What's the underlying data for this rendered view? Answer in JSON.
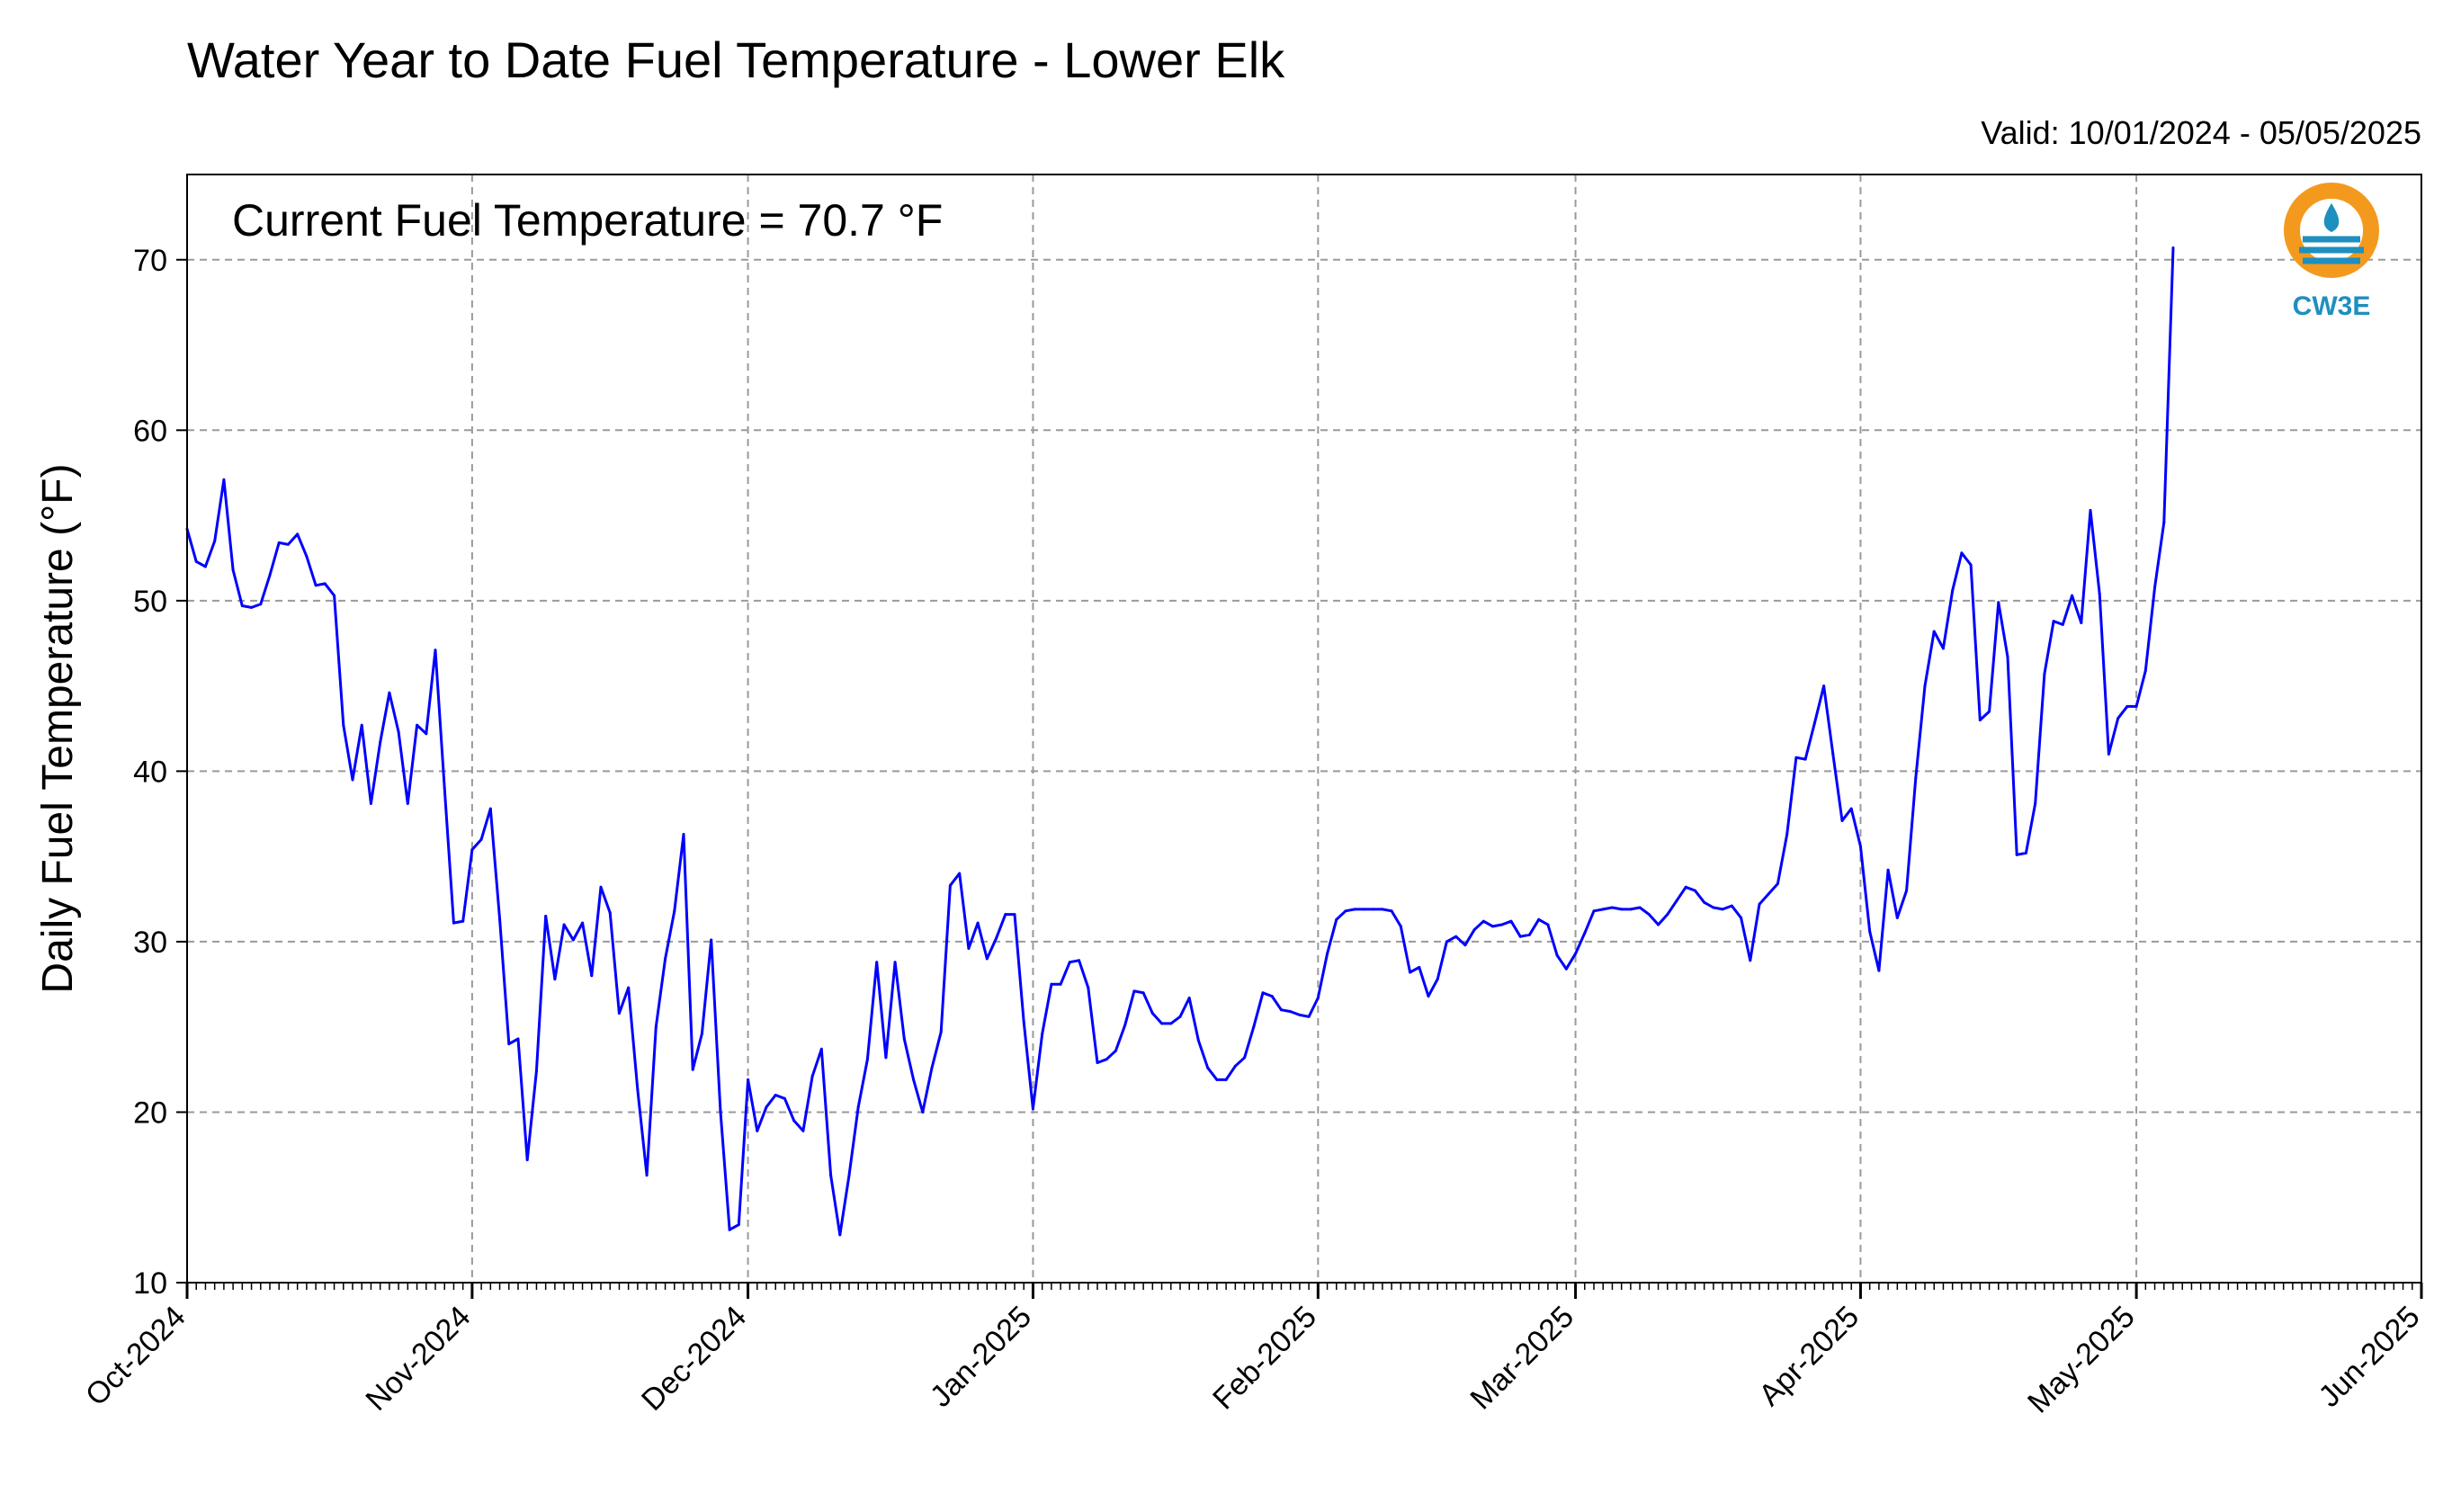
{
  "chart_data": {
    "type": "line",
    "title": "Water Year to Date Fuel Temperature - Lower Elk",
    "valid_text": "Valid: 10/01/2024 - 05/05/2025",
    "annotation": "Current Fuel Temperature = 70.7 °F",
    "xlabel": "",
    "ylabel": "Daily Fuel Temperature (°F)",
    "ylim": [
      10,
      75
    ],
    "yticks": [
      10,
      20,
      30,
      40,
      50,
      60,
      70
    ],
    "xlim": [
      "2024-10-01",
      "2025-06-01"
    ],
    "xticks": [
      {
        "date": "2024-10-01",
        "label": "Oct-2024"
      },
      {
        "date": "2024-11-01",
        "label": "Nov-2024"
      },
      {
        "date": "2024-12-01",
        "label": "Dec-2024"
      },
      {
        "date": "2025-01-01",
        "label": "Jan-2025"
      },
      {
        "date": "2025-02-01",
        "label": "Feb-2025"
      },
      {
        "date": "2025-03-01",
        "label": "Mar-2025"
      },
      {
        "date": "2025-04-01",
        "label": "Apr-2025"
      },
      {
        "date": "2025-05-01",
        "label": "May-2025"
      },
      {
        "date": "2025-06-01",
        "label": "Jun-2025"
      }
    ],
    "grid": true,
    "series": [
      {
        "color": "#0000ff",
        "start_date": "2024-10-01",
        "values": [
          54.2,
          52.3,
          52.0,
          53.5,
          57.1,
          51.8,
          49.7,
          49.6,
          49.8,
          51.5,
          53.4,
          53.3,
          53.9,
          52.6,
          50.9,
          51.0,
          50.3,
          42.7,
          39.5,
          42.7,
          38.1,
          41.7,
          44.6,
          42.3,
          38.1,
          42.7,
          42.2,
          47.1,
          39.0,
          31.1,
          31.2,
          35.4,
          36.0,
          37.8,
          31.3,
          24.0,
          24.3,
          17.2,
          22.4,
          31.5,
          27.8,
          31.0,
          30.1,
          31.1,
          28.0,
          33.2,
          31.7,
          25.8,
          27.3,
          21.3,
          16.3,
          25.0,
          29.0,
          31.8,
          36.3,
          22.5,
          24.6,
          30.1,
          20.1,
          13.1,
          13.4,
          21.9,
          18.9,
          20.3,
          21.0,
          20.8,
          19.5,
          18.9,
          22.1,
          23.7,
          16.3,
          12.8,
          16.3,
          20.3,
          23.1,
          28.8,
          23.2,
          28.8,
          24.3,
          21.9,
          20.0,
          22.6,
          24.7,
          33.3,
          34.0,
          29.6,
          31.1,
          29.0,
          30.2,
          31.6,
          31.6,
          25.3,
          20.2,
          24.6,
          27.5,
          27.5,
          28.8,
          28.9,
          27.3,
          22.9,
          23.1,
          23.6,
          25.1,
          27.1,
          27.0,
          25.8,
          25.2,
          25.2,
          25.6,
          26.7,
          24.2,
          22.6,
          21.9,
          21.9,
          22.7,
          23.2,
          25.0,
          27.0,
          26.8,
          26.0,
          25.9,
          25.7,
          25.6,
          26.7,
          29.3,
          31.3,
          31.8,
          31.9,
          31.9,
          31.9,
          31.9,
          31.8,
          30.9,
          28.2,
          28.5,
          26.8,
          27.8,
          30.0,
          30.3,
          29.8,
          30.7,
          31.2,
          30.9,
          31.0,
          31.2,
          30.3,
          30.4,
          31.3,
          31.0,
          29.2,
          28.4,
          29.3,
          30.5,
          31.8,
          31.9,
          32.0,
          31.9,
          31.9,
          32.0,
          31.6,
          31.0,
          31.6,
          32.4,
          33.2,
          33.0,
          32.3,
          32.0,
          31.9,
          32.1,
          31.4,
          28.9,
          32.2,
          32.8,
          33.4,
          36.3,
          40.8,
          40.7,
          42.8,
          45.0,
          41.0,
          37.1,
          37.8,
          35.6,
          30.6,
          28.3,
          34.2,
          31.4,
          33.0,
          39.6,
          45.0,
          48.2,
          47.2,
          50.6,
          52.8,
          52.1,
          43.0,
          43.5,
          49.9,
          46.7,
          35.1,
          35.2,
          38.1,
          45.7,
          48.8,
          48.6,
          50.3,
          48.7,
          55.3,
          50.4,
          41.0,
          43.1,
          43.8,
          43.8,
          45.9,
          50.8,
          54.6,
          70.7
        ]
      }
    ]
  },
  "logo": {
    "text": "CW3E",
    "ring_color": "#f39a1e",
    "wave_color": "#1e8fbf"
  }
}
